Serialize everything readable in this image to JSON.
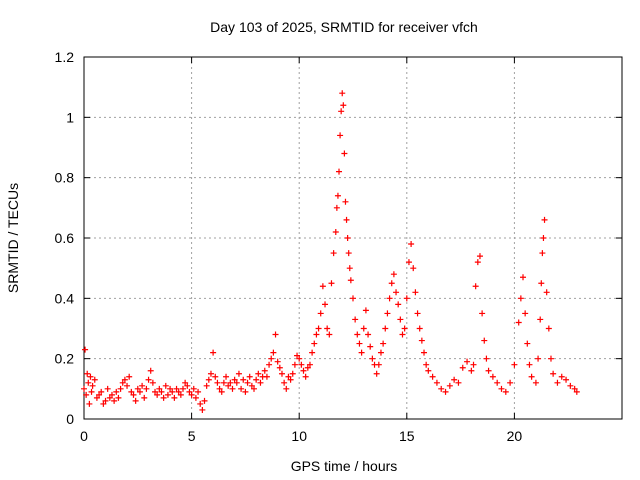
{
  "chart_data": {
    "type": "scatter",
    "title": "Day 103 of 2025, SRMTID for receiver vfch",
    "xlabel": "GPS time / hours",
    "ylabel": "SRMTID / TECUs",
    "xlim": [
      0,
      25
    ],
    "ylim": [
      0,
      1.2
    ],
    "x_ticks": [
      "0",
      "5",
      "10",
      "15",
      "20"
    ],
    "y_ticks": [
      "0",
      "0.2",
      "0.4",
      "0.6",
      "0.8",
      "1",
      "1.2"
    ],
    "grid": "on",
    "marker": "+",
    "color": "#ff0000",
    "series": [
      {
        "name": "SRMTID",
        "points": [
          [
            0.0,
            0.1
          ],
          [
            0.05,
            0.23
          ],
          [
            0.1,
            0.08
          ],
          [
            0.15,
            0.15
          ],
          [
            0.2,
            0.12
          ],
          [
            0.25,
            0.05
          ],
          [
            0.3,
            0.14
          ],
          [
            0.35,
            0.09
          ],
          [
            0.4,
            0.11
          ],
          [
            0.5,
            0.13
          ],
          [
            0.6,
            0.07
          ],
          [
            0.7,
            0.08
          ],
          [
            0.8,
            0.09
          ],
          [
            0.9,
            0.05
          ],
          [
            1.0,
            0.06
          ],
          [
            1.1,
            0.1
          ],
          [
            1.2,
            0.07
          ],
          [
            1.3,
            0.08
          ],
          [
            1.4,
            0.06
          ],
          [
            1.5,
            0.09
          ],
          [
            1.6,
            0.07
          ],
          [
            1.7,
            0.1
          ],
          [
            1.8,
            0.12
          ],
          [
            1.9,
            0.13
          ],
          [
            2.0,
            0.11
          ],
          [
            2.1,
            0.14
          ],
          [
            2.2,
            0.09
          ],
          [
            2.3,
            0.08
          ],
          [
            2.4,
            0.06
          ],
          [
            2.5,
            0.1
          ],
          [
            2.6,
            0.09
          ],
          [
            2.7,
            0.11
          ],
          [
            2.8,
            0.07
          ],
          [
            2.9,
            0.1
          ],
          [
            3.0,
            0.13
          ],
          [
            3.1,
            0.16
          ],
          [
            3.2,
            0.12
          ],
          [
            3.3,
            0.09
          ],
          [
            3.4,
            0.08
          ],
          [
            3.5,
            0.1
          ],
          [
            3.6,
            0.09
          ],
          [
            3.7,
            0.07
          ],
          [
            3.8,
            0.11
          ],
          [
            3.9,
            0.08
          ],
          [
            4.0,
            0.1
          ],
          [
            4.1,
            0.09
          ],
          [
            4.2,
            0.07
          ],
          [
            4.3,
            0.1
          ],
          [
            4.4,
            0.09
          ],
          [
            4.5,
            0.08
          ],
          [
            4.6,
            0.1
          ],
          [
            4.7,
            0.12
          ],
          [
            4.8,
            0.11
          ],
          [
            4.9,
            0.09
          ],
          [
            5.0,
            0.08
          ],
          [
            5.1,
            0.1
          ],
          [
            5.2,
            0.07
          ],
          [
            5.3,
            0.09
          ],
          [
            5.4,
            0.05
          ],
          [
            5.5,
            0.03
          ],
          [
            5.6,
            0.06
          ],
          [
            5.7,
            0.11
          ],
          [
            5.8,
            0.13
          ],
          [
            5.9,
            0.15
          ],
          [
            6.0,
            0.22
          ],
          [
            6.1,
            0.14
          ],
          [
            6.2,
            0.12
          ],
          [
            6.3,
            0.1
          ],
          [
            6.4,
            0.09
          ],
          [
            6.5,
            0.12
          ],
          [
            6.6,
            0.14
          ],
          [
            6.7,
            0.11
          ],
          [
            6.8,
            0.12
          ],
          [
            6.9,
            0.1
          ],
          [
            7.0,
            0.13
          ],
          [
            7.1,
            0.12
          ],
          [
            7.2,
            0.15
          ],
          [
            7.3,
            0.1
          ],
          [
            7.4,
            0.13
          ],
          [
            7.5,
            0.09
          ],
          [
            7.6,
            0.12
          ],
          [
            7.7,
            0.14
          ],
          [
            7.8,
            0.11
          ],
          [
            7.9,
            0.1
          ],
          [
            8.0,
            0.13
          ],
          [
            8.1,
            0.15
          ],
          [
            8.2,
            0.12
          ],
          [
            8.3,
            0.14
          ],
          [
            8.4,
            0.16
          ],
          [
            8.5,
            0.14
          ],
          [
            8.6,
            0.18
          ],
          [
            8.7,
            0.2
          ],
          [
            8.8,
            0.22
          ],
          [
            8.9,
            0.28
          ],
          [
            9.0,
            0.19
          ],
          [
            9.1,
            0.17
          ],
          [
            9.2,
            0.15
          ],
          [
            9.3,
            0.12
          ],
          [
            9.4,
            0.1
          ],
          [
            9.5,
            0.14
          ],
          [
            9.6,
            0.13
          ],
          [
            9.7,
            0.15
          ],
          [
            9.8,
            0.18
          ],
          [
            9.9,
            0.21
          ],
          [
            10.0,
            0.2
          ],
          [
            10.1,
            0.18
          ],
          [
            10.2,
            0.16
          ],
          [
            10.3,
            0.14
          ],
          [
            10.4,
            0.17
          ],
          [
            10.5,
            0.18
          ],
          [
            10.6,
            0.22
          ],
          [
            10.7,
            0.25
          ],
          [
            10.8,
            0.28
          ],
          [
            10.9,
            0.3
          ],
          [
            11.0,
            0.35
          ],
          [
            11.1,
            0.44
          ],
          [
            11.2,
            0.38
          ],
          [
            11.3,
            0.3
          ],
          [
            11.4,
            0.28
          ],
          [
            11.5,
            0.45
          ],
          [
            11.6,
            0.55
          ],
          [
            11.7,
            0.62
          ],
          [
            11.75,
            0.7
          ],
          [
            11.8,
            0.74
          ],
          [
            11.85,
            0.82
          ],
          [
            11.9,
            0.94
          ],
          [
            11.95,
            1.02
          ],
          [
            12.0,
            1.08
          ],
          [
            12.05,
            1.04
          ],
          [
            12.1,
            0.88
          ],
          [
            12.15,
            0.72
          ],
          [
            12.2,
            0.66
          ],
          [
            12.25,
            0.6
          ],
          [
            12.3,
            0.55
          ],
          [
            12.35,
            0.5
          ],
          [
            12.4,
            0.46
          ],
          [
            12.5,
            0.4
          ],
          [
            12.6,
            0.33
          ],
          [
            12.7,
            0.28
          ],
          [
            12.8,
            0.25
          ],
          [
            12.9,
            0.22
          ],
          [
            13.0,
            0.3
          ],
          [
            13.1,
            0.36
          ],
          [
            13.2,
            0.28
          ],
          [
            13.3,
            0.24
          ],
          [
            13.4,
            0.2
          ],
          [
            13.5,
            0.18
          ],
          [
            13.6,
            0.15
          ],
          [
            13.7,
            0.18
          ],
          [
            13.8,
            0.22
          ],
          [
            13.9,
            0.25
          ],
          [
            14.0,
            0.3
          ],
          [
            14.1,
            0.35
          ],
          [
            14.2,
            0.4
          ],
          [
            14.3,
            0.45
          ],
          [
            14.4,
            0.48
          ],
          [
            14.5,
            0.42
          ],
          [
            14.6,
            0.38
          ],
          [
            14.7,
            0.33
          ],
          [
            14.8,
            0.28
          ],
          [
            14.9,
            0.3
          ],
          [
            15.0,
            0.4
          ],
          [
            15.1,
            0.52
          ],
          [
            15.2,
            0.58
          ],
          [
            15.3,
            0.5
          ],
          [
            15.4,
            0.42
          ],
          [
            15.5,
            0.35
          ],
          [
            15.6,
            0.3
          ],
          [
            15.7,
            0.26
          ],
          [
            15.8,
            0.22
          ],
          [
            15.9,
            0.18
          ],
          [
            16.0,
            0.16
          ],
          [
            16.2,
            0.14
          ],
          [
            16.4,
            0.12
          ],
          [
            16.6,
            0.1
          ],
          [
            16.8,
            0.09
          ],
          [
            17.0,
            0.11
          ],
          [
            17.2,
            0.13
          ],
          [
            17.4,
            0.12
          ],
          [
            17.6,
            0.17
          ],
          [
            17.8,
            0.19
          ],
          [
            18.0,
            0.16
          ],
          [
            18.1,
            0.18
          ],
          [
            18.2,
            0.44
          ],
          [
            18.3,
            0.52
          ],
          [
            18.4,
            0.54
          ],
          [
            18.5,
            0.35
          ],
          [
            18.6,
            0.26
          ],
          [
            18.7,
            0.2
          ],
          [
            18.8,
            0.16
          ],
          [
            19.0,
            0.14
          ],
          [
            19.2,
            0.12
          ],
          [
            19.4,
            0.1
          ],
          [
            19.6,
            0.09
          ],
          [
            19.8,
            0.12
          ],
          [
            20.0,
            0.18
          ],
          [
            20.2,
            0.32
          ],
          [
            20.3,
            0.4
          ],
          [
            20.4,
            0.47
          ],
          [
            20.5,
            0.35
          ],
          [
            20.6,
            0.25
          ],
          [
            20.7,
            0.18
          ],
          [
            20.8,
            0.14
          ],
          [
            21.0,
            0.12
          ],
          [
            21.1,
            0.2
          ],
          [
            21.2,
            0.33
          ],
          [
            21.25,
            0.45
          ],
          [
            21.3,
            0.55
          ],
          [
            21.35,
            0.6
          ],
          [
            21.4,
            0.66
          ],
          [
            21.5,
            0.42
          ],
          [
            21.6,
            0.3
          ],
          [
            21.7,
            0.2
          ],
          [
            21.8,
            0.15
          ],
          [
            22.0,
            0.12
          ],
          [
            22.2,
            0.14
          ],
          [
            22.4,
            0.13
          ],
          [
            22.6,
            0.11
          ],
          [
            22.8,
            0.1
          ],
          [
            22.9,
            0.09
          ]
        ]
      }
    ]
  }
}
